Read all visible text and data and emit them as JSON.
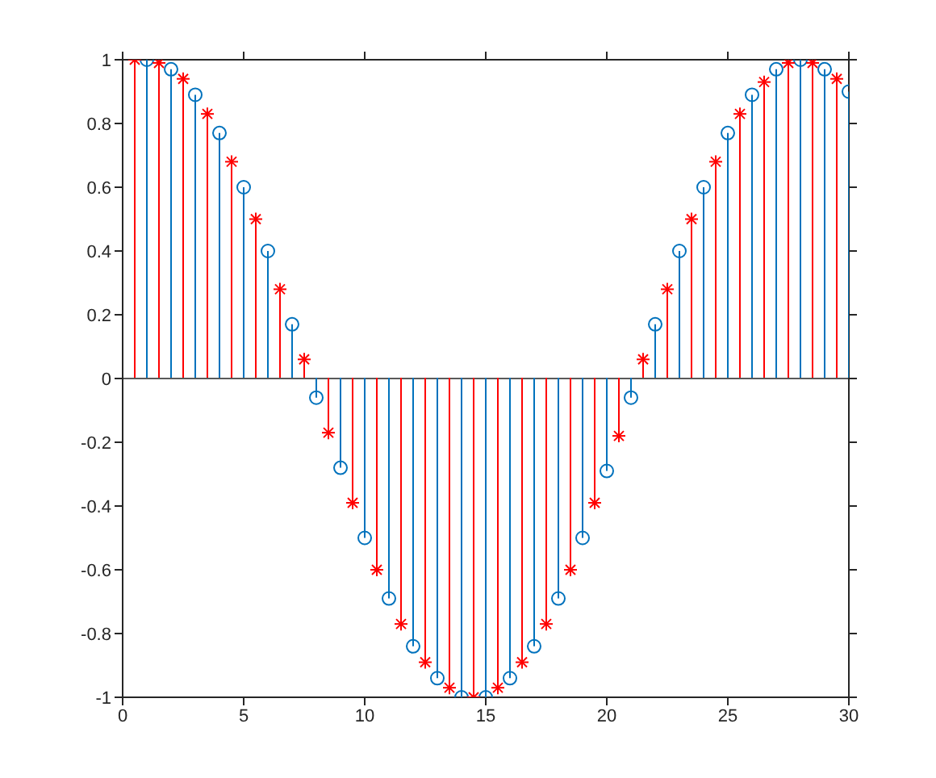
{
  "chart_data": {
    "type": "lollipop",
    "xlim": [
      0,
      30
    ],
    "ylim": [
      -1,
      1
    ],
    "xticks": [
      0,
      5,
      10,
      15,
      20,
      25,
      30
    ],
    "yticks": [
      -1,
      -0.8,
      -0.6,
      -0.4,
      -0.2,
      0,
      0.2,
      0.4,
      0.6,
      0.8,
      1
    ],
    "ref_lines": [
      {
        "axis": "y",
        "value": 0,
        "color": "#595959"
      }
    ],
    "series": [
      {
        "color": "#0072bd",
        "marker": "circle",
        "x": [
          1,
          2,
          3,
          4,
          5,
          6,
          7,
          8,
          9,
          10,
          11,
          12,
          13,
          14,
          15,
          16,
          17,
          18,
          19,
          20,
          21,
          22,
          23,
          24,
          25,
          26,
          27,
          28,
          29,
          30
        ],
        "values": [
          1.0,
          0.97,
          0.89,
          0.77,
          0.6,
          0.4,
          0.17,
          -0.06,
          -0.28,
          -0.5,
          -0.69,
          -0.84,
          -0.94,
          -1.0,
          -1.0,
          -0.94,
          -0.84,
          -0.69,
          -0.5,
          -0.29,
          -0.06,
          0.17,
          0.4,
          0.6,
          0.77,
          0.89,
          0.97,
          1.0,
          0.97,
          0.9
        ]
      },
      {
        "color": "#ff0000",
        "marker": "cross",
        "x": [
          0.5,
          1.5,
          2.5,
          3.5,
          4.5,
          5.5,
          6.5,
          7.5,
          8.5,
          9.5,
          10.5,
          11.5,
          12.5,
          13.5,
          14.5,
          15.5,
          16.5,
          17.5,
          18.5,
          19.5,
          20.5,
          21.5,
          22.5,
          23.5,
          24.5,
          25.5,
          26.5,
          27.5,
          28.5,
          29.5
        ],
        "values": [
          1.0,
          0.99,
          0.94,
          0.83,
          0.68,
          0.5,
          0.28,
          0.06,
          -0.17,
          -0.39,
          -0.6,
          -0.77,
          -0.89,
          -0.97,
          -1.0,
          -0.97,
          -0.89,
          -0.77,
          -0.6,
          -0.39,
          -0.18,
          0.06,
          0.28,
          0.5,
          0.68,
          0.83,
          0.93,
          0.99,
          0.99,
          0.94
        ]
      }
    ]
  }
}
